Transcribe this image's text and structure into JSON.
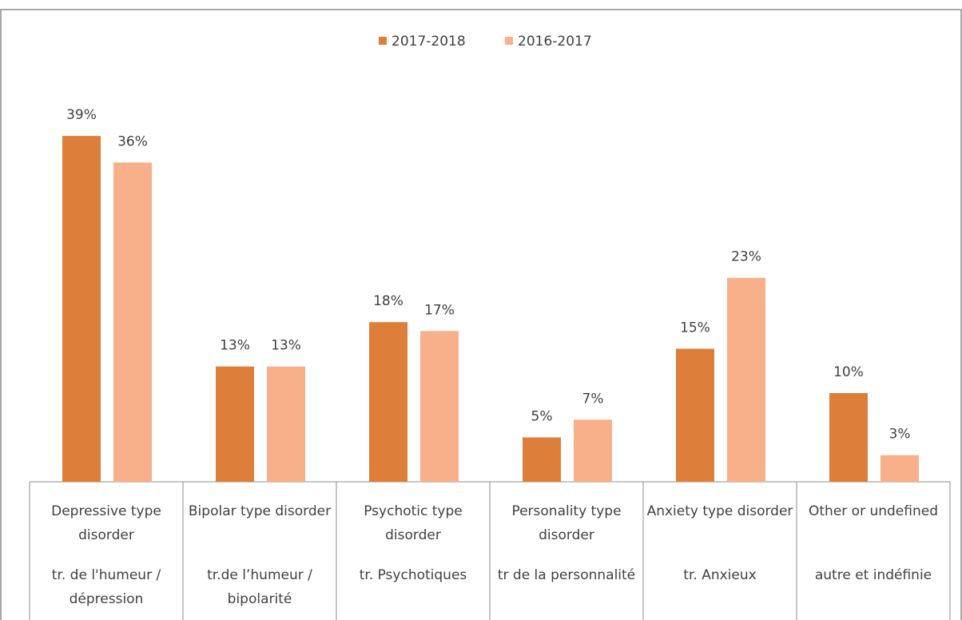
{
  "chart_data": {
    "type": "bar",
    "categories": [
      "Depressive type disorder",
      "Bipolar type disorder",
      "Psychotic type disorder",
      "Personality type disorder",
      "Anxiety type disorder",
      "Other or undefined"
    ],
    "category_translations": [
      "tr. de l'humeur / dépression",
      "tr.de l’humeur / bipolarité",
      "tr. Psychotiques",
      "tr de la personnalité",
      "tr. Anxieux",
      "autre et indéfinie"
    ],
    "series": [
      {
        "name": "2017-2018",
        "color": "#dd7f3a",
        "values": [
          39,
          13,
          18,
          5,
          15,
          10
        ],
        "value_labels": [
          "39%",
          "13%",
          "18%",
          "5%",
          "15%",
          "10%"
        ]
      },
      {
        "name": "2016-2017",
        "color": "#f8b08b",
        "values": [
          36,
          13,
          17,
          7,
          23,
          3
        ],
        "value_labels": [
          "36%",
          "13%",
          "17%",
          "7%",
          "23%",
          "3%"
        ]
      }
    ],
    "ylim": [
      0,
      40
    ],
    "legend": "top"
  }
}
